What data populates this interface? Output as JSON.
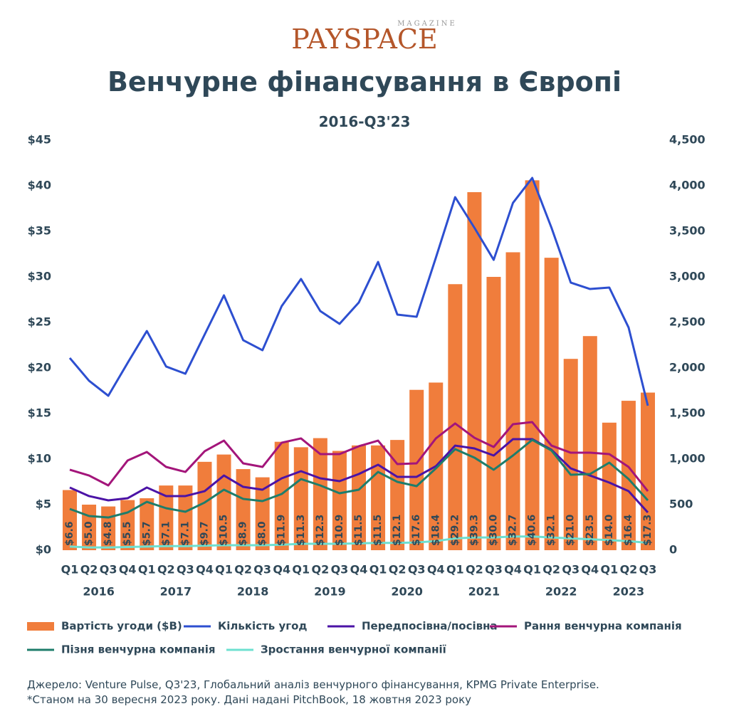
{
  "logo": {
    "text": "PAYSPACE",
    "tag": "MAGAZINE"
  },
  "chart_data": {
    "type": "bar",
    "title": "Венчурне фінансування в Європі",
    "subtitle": "2016-Q3'23",
    "categories": [
      "Q1",
      "Q2",
      "Q3",
      "Q4",
      "Q1",
      "Q2",
      "Q3",
      "Q4",
      "Q1",
      "Q2",
      "Q3",
      "Q4",
      "Q1",
      "Q2",
      "Q3",
      "Q4",
      "Q1",
      "Q2",
      "Q3",
      "Q4",
      "Q1",
      "Q2",
      "Q3",
      "Q4",
      "Q1",
      "Q2",
      "Q3",
      "Q4",
      "Q1",
      "Q2",
      "Q3"
    ],
    "groups": [
      "2016",
      "2017",
      "2018",
      "2019",
      "2020",
      "2021",
      "2022",
      "2023"
    ],
    "ylim": [
      0,
      45
    ],
    "yticks": [
      {
        "value": 0,
        "label": "$0"
      },
      {
        "value": 5,
        "label": "$5"
      },
      {
        "value": 10,
        "label": "$10"
      },
      {
        "value": 15,
        "label": "$15"
      },
      {
        "value": 20,
        "label": "$20"
      },
      {
        "value": 25,
        "label": "$25"
      },
      {
        "value": 30,
        "label": "$30"
      },
      {
        "value": 35,
        "label": "$35"
      },
      {
        "value": 40,
        "label": "$40"
      },
      {
        "value": 45,
        "label": "$45"
      }
    ],
    "y2lim": [
      0,
      4500
    ],
    "y2ticks": [
      0,
      500,
      {
        "value": 1000,
        "label": "1,000"
      },
      {
        "value": 1500,
        "label": "1,500"
      },
      {
        "value": 2000,
        "label": "2,000"
      },
      {
        "value": 2500,
        "label": "2,500"
      },
      {
        "value": 3000,
        "label": "3,000"
      },
      {
        "value": 3500,
        "label": "3,500"
      },
      {
        "value": 4000,
        "label": "4,000"
      },
      {
        "value": 4500,
        "label": "4,500"
      }
    ],
    "series": [
      {
        "name": "Вартість угоди ($B)",
        "type": "bar",
        "color": "#f07d3c",
        "values": [
          6.6,
          5.0,
          4.8,
          5.5,
          5.7,
          7.1,
          7.1,
          9.7,
          10.5,
          8.9,
          8.0,
          11.9,
          11.3,
          12.3,
          10.9,
          11.5,
          11.5,
          12.1,
          17.6,
          18.4,
          29.2,
          39.3,
          30.0,
          32.7,
          40.6,
          32.1,
          21.0,
          23.5,
          14.0,
          16.4,
          17.3
        ],
        "value_labels": [
          "$6.6",
          "$5.0",
          "$4.8",
          "$5.5",
          "$5.7",
          "$7.1",
          "$7.1",
          "$9.7",
          "$10.5",
          "$8.9",
          "$8.0",
          "$11.9",
          "$11.3",
          "$12.3",
          "$10.9",
          "$11.5",
          "$11.5",
          "$12.1",
          "$17.6",
          "$18.4",
          "$29.2",
          "$39.3",
          "$30.0",
          "$32.7",
          "$40.6",
          "$32.1",
          "$21.0",
          "$23.5",
          "$14.0",
          "$16.4",
          "$17.3"
        ]
      },
      {
        "name": "Кількість угод",
        "type": "line",
        "axis": "y2",
        "color": "#2d4fd0",
        "values": [
          2110,
          1860,
          1695,
          2055,
          2406,
          2016,
          1937,
          2367,
          2797,
          2305,
          2195,
          2680,
          2977,
          2625,
          2484,
          2719,
          3164,
          2586,
          2562,
          3211,
          3875,
          3539,
          3187,
          3812,
          4086,
          3539,
          2937,
          2867,
          2883,
          2445,
          1586
        ]
      },
      {
        "name": "Передпосівна/посівна",
        "type": "line",
        "axis": "y2",
        "color": "#4b13a6",
        "values": [
          688,
          594,
          547,
          570,
          688,
          594,
          594,
          648,
          820,
          695,
          664,
          789,
          867,
          789,
          758,
          836,
          938,
          805,
          805,
          922,
          1148,
          1117,
          1039,
          1219,
          1219,
          1102,
          898,
          820,
          742,
          648,
          414
        ]
      },
      {
        "name": "Рання венчурна компанія",
        "type": "line",
        "axis": "y2",
        "color": "#a3157a",
        "values": [
          883,
          820,
          711,
          984,
          1078,
          914,
          859,
          1086,
          1203,
          953,
          914,
          1180,
          1227,
          1055,
          1055,
          1141,
          1203,
          945,
          953,
          1227,
          1391,
          1234,
          1133,
          1383,
          1406,
          1148,
          1070,
          1070,
          1055,
          914,
          648
        ]
      },
      {
        "name": "Пізня венчурна компанія",
        "type": "line",
        "axis": "y2",
        "color": "#1e7d6b",
        "values": [
          453,
          375,
          359,
          414,
          531,
          461,
          422,
          523,
          664,
          563,
          539,
          617,
          781,
          711,
          625,
          664,
          859,
          750,
          703,
          898,
          1109,
          1016,
          883,
          1039,
          1211,
          1094,
          828,
          836,
          961,
          781,
          547
        ]
      },
      {
        "name": "Зростання венчурної компанії",
        "type": "line",
        "axis": "y2",
        "color": "#6ee0d0",
        "values": [
          40,
          30,
          30,
          35,
          40,
          45,
          45,
          50,
          55,
          55,
          55,
          60,
          70,
          70,
          70,
          75,
          80,
          80,
          85,
          100,
          130,
          140,
          140,
          150,
          150,
          140,
          130,
          120,
          110,
          100,
          80
        ]
      }
    ],
    "notes": [
      "Джерело: Venture Pulse, Q3'23, Глобальний аналіз венчурного фінансування, KPMG Private Enterprise.",
      "*Станом на 30 вересня 2023 року. Дані надані PitchBook, 18 жовтня 2023 року"
    ]
  }
}
